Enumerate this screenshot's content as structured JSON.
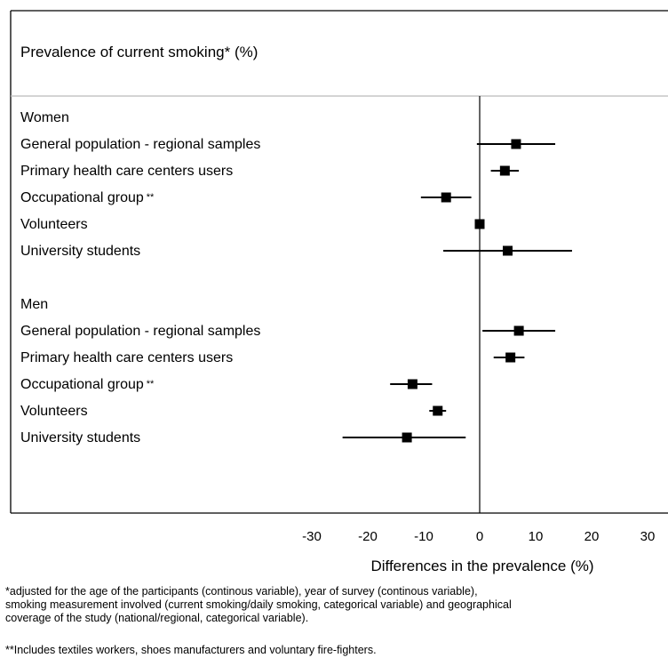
{
  "chart_data": {
    "type": "forest",
    "title": "Prevalence of current smoking* (%)",
    "xlabel": "Differences in the prevalence (%)",
    "xticks": [
      -30,
      -20,
      -10,
      0,
      10,
      20,
      30
    ],
    "xlim": [
      -30,
      30
    ],
    "grid": false,
    "reference_line": 0,
    "groups": [
      {
        "name": "Women",
        "rows": [
          {
            "label": "General population - regional samples",
            "marker": "",
            "estimate": 6.5,
            "ci": [
              -0.5,
              13.5
            ]
          },
          {
            "label": "Primary health care centers users",
            "marker": "",
            "estimate": 4.5,
            "ci": [
              2.0,
              7.0
            ]
          },
          {
            "label": "Occupational group",
            "marker": "**",
            "estimate": -6.0,
            "ci": [
              -10.5,
              -1.5
            ]
          },
          {
            "label": "Volunteers",
            "marker": "",
            "estimate": 0.0,
            "ci": [
              -0.5,
              0.5
            ]
          },
          {
            "label": "University students",
            "marker": "",
            "estimate": 5.0,
            "ci": [
              -6.5,
              16.5
            ]
          }
        ]
      },
      {
        "name": "Men",
        "rows": [
          {
            "label": "General population - regional samples",
            "marker": "",
            "estimate": 7.0,
            "ci": [
              0.5,
              13.5
            ]
          },
          {
            "label": "Primary health care centers users",
            "marker": "",
            "estimate": 5.5,
            "ci": [
              2.5,
              8.0
            ]
          },
          {
            "label": "Occupational group",
            "marker": "**",
            "estimate": -12.0,
            "ci": [
              -16.0,
              -8.5
            ]
          },
          {
            "label": "Volunteers",
            "marker": "",
            "estimate": -7.5,
            "ci": [
              -9.0,
              -6.0
            ]
          },
          {
            "label": "University students",
            "marker": "",
            "estimate": -13.0,
            "ci": [
              -24.5,
              -2.5
            ]
          }
        ]
      }
    ]
  },
  "footnotes": {
    "note1": "*adjusted for the age of the participants (continous variable), year of survey (continous variable),\nsmoking measurement involved (current smoking/daily smoking, categorical variable) and geographical\ncoverage of the study (national/regional, categorical variable).",
    "note2": "**Includes textiles workers, shoes manufacturers and voluntary fire-fighters."
  }
}
